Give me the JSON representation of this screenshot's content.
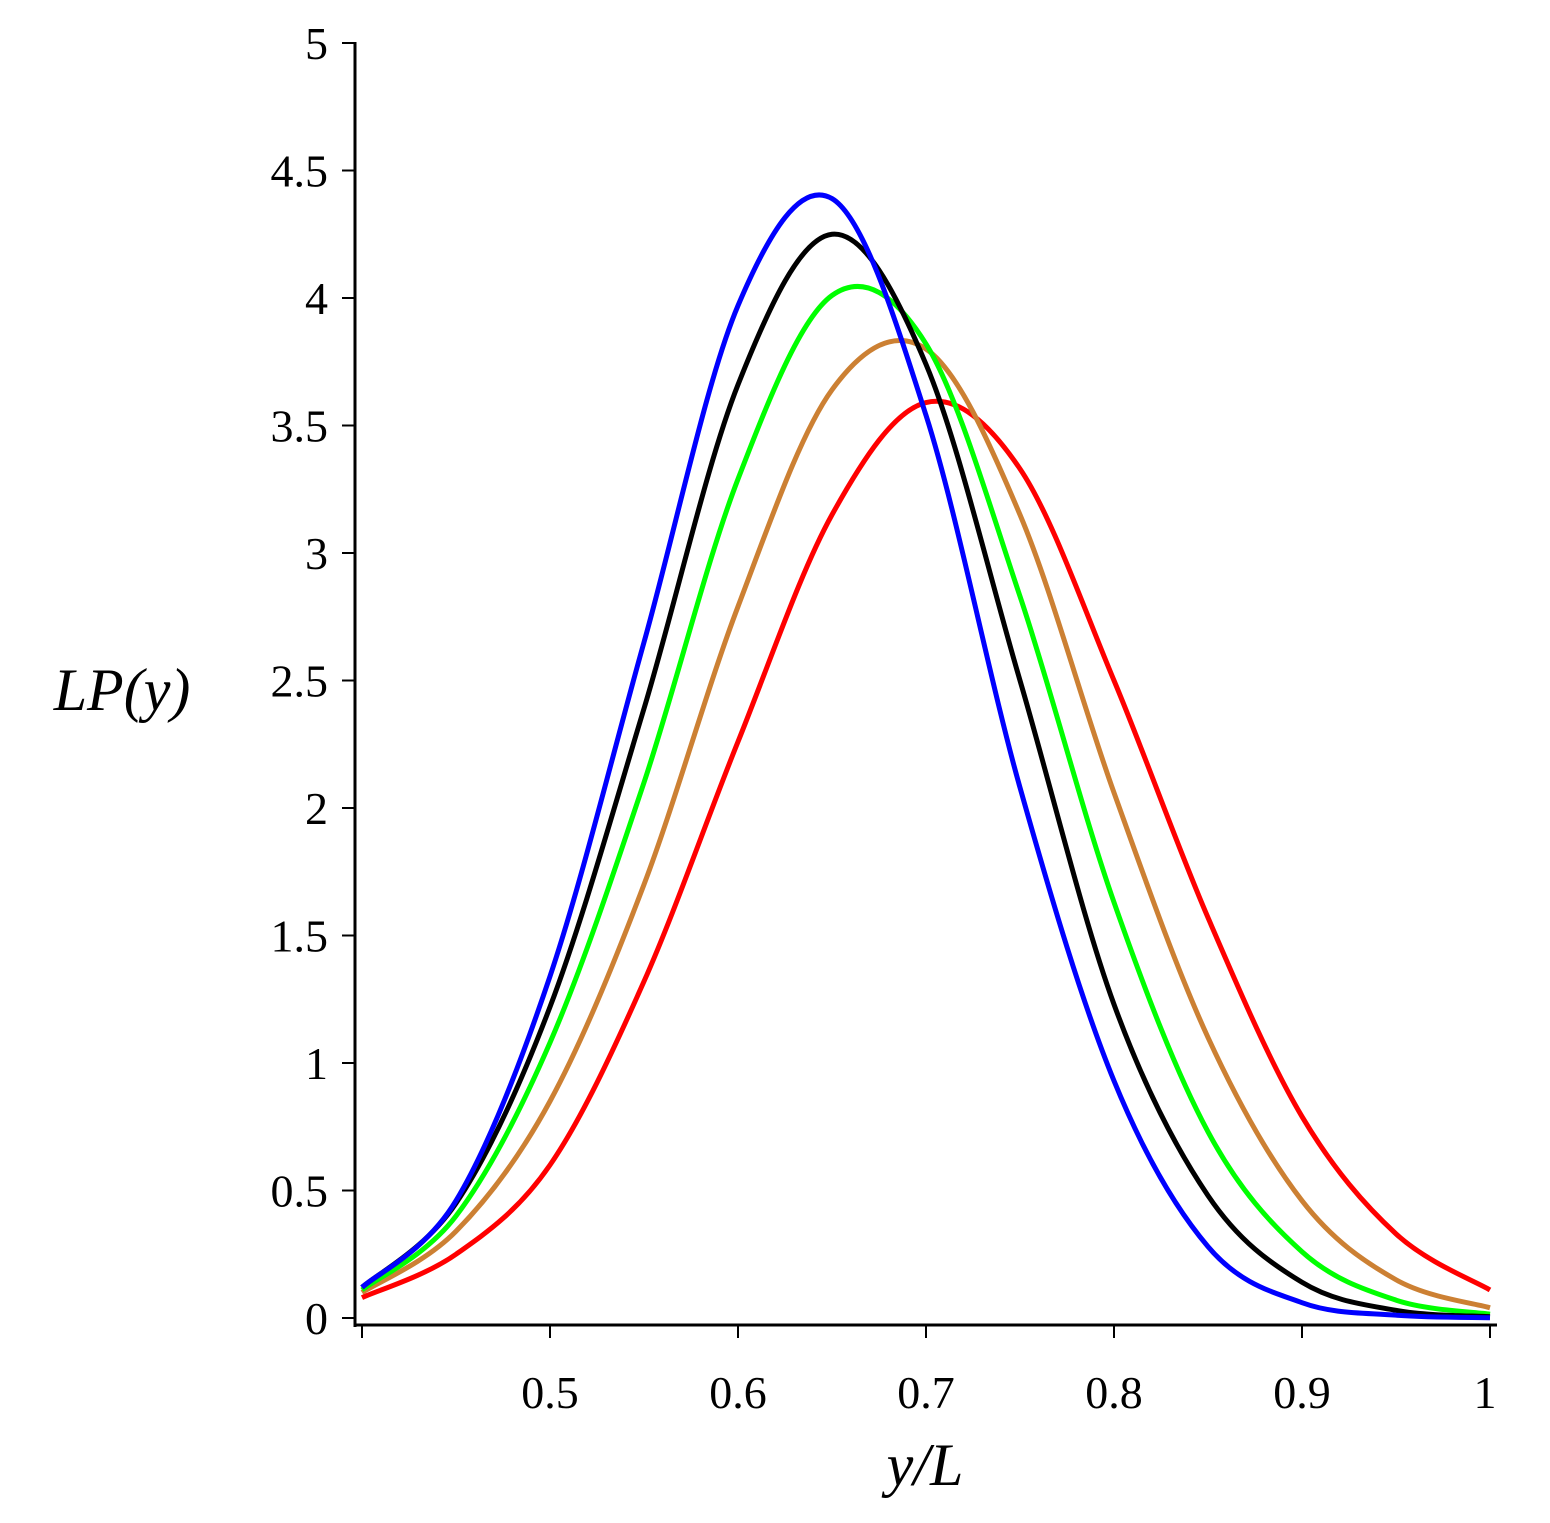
{
  "chart_data": {
    "type": "line",
    "title": "",
    "xlabel": "y/L",
    "ylabel": "LP(y)",
    "xlim": [
      0.4,
      1.0
    ],
    "ylim": [
      0,
      5
    ],
    "grid": false,
    "legend": "none",
    "xticks": [
      "0.5",
      "0.6",
      "0.7",
      "0.8",
      "0.9",
      "1"
    ],
    "xtick_values": [
      0.5,
      0.6,
      0.7,
      0.8,
      0.9,
      1.0
    ],
    "yticks": [
      "0",
      "0.5",
      "1",
      "1.5",
      "2",
      "2.5",
      "3",
      "3.5",
      "4",
      "4.5",
      "5"
    ],
    "ytick_values": [
      0,
      0.5,
      1,
      1.5,
      2,
      2.5,
      3,
      3.5,
      4,
      4.5,
      5
    ],
    "x": [
      0.4,
      0.45,
      0.5,
      0.55,
      0.6,
      0.65,
      0.7,
      0.75,
      0.8,
      0.85,
      0.9,
      0.95,
      1.0
    ],
    "series": [
      {
        "name": "red",
        "color": "#ff0000",
        "values": [
          0.08,
          0.25,
          0.6,
          1.32,
          2.26,
          3.15,
          3.59,
          3.33,
          2.5,
          1.57,
          0.79,
          0.33,
          0.11
        ]
      },
      {
        "name": "orange",
        "color": "#cc8033",
        "values": [
          0.1,
          0.34,
          0.85,
          1.7,
          2.79,
          3.64,
          3.8,
          3.15,
          2.06,
          1.1,
          0.46,
          0.15,
          0.04
        ]
      },
      {
        "name": "green",
        "color": "#00ff00",
        "values": [
          0.11,
          0.4,
          1.08,
          2.1,
          3.29,
          4.01,
          3.82,
          2.83,
          1.63,
          0.73,
          0.26,
          0.07,
          0.015
        ]
      },
      {
        "name": "black",
        "color": "#000000",
        "values": [
          0.12,
          0.45,
          1.22,
          2.39,
          3.66,
          4.25,
          3.74,
          2.5,
          1.23,
          0.48,
          0.14,
          0.03,
          0.005
        ]
      },
      {
        "name": "blue",
        "color": "#0000ff",
        "values": [
          0.12,
          0.46,
          1.34,
          2.65,
          3.97,
          4.39,
          3.54,
          2.08,
          0.93,
          0.28,
          0.06,
          0.011,
          0.001
        ]
      }
    ]
  }
}
